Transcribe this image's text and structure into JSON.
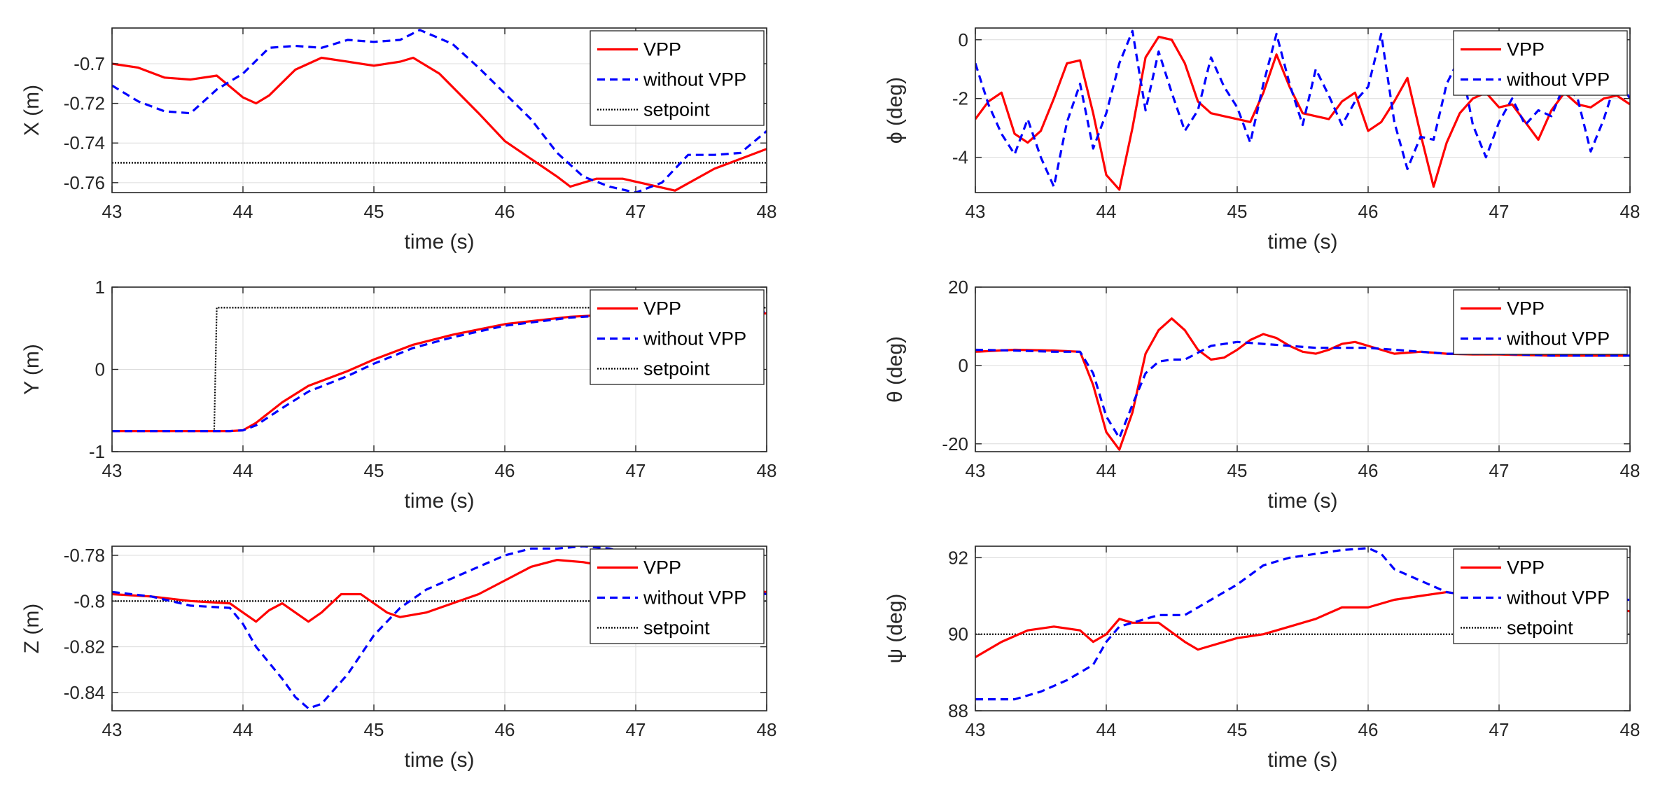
{
  "colors": {
    "vpp": "#ff0000",
    "without": "#0000ff",
    "setpoint": "#000000",
    "axis": "#262626",
    "grid": "#dcdcdc"
  },
  "legend_labels": {
    "vpp": "VPP",
    "without": "without VPP",
    "setpoint": "setpoint"
  },
  "chart_data": [
    {
      "id": "X",
      "type": "line",
      "ylabel": "X (m)",
      "xlabel": "time (s)",
      "xlim": [
        43,
        48
      ],
      "ylim": [
        -0.765,
        -0.682
      ],
      "xticks": [
        43,
        44,
        45,
        46,
        47,
        48
      ],
      "xtick_labels": [
        "43",
        "44",
        "45",
        "46",
        "47",
        "48"
      ],
      "yticks": [
        -0.76,
        -0.74,
        -0.72,
        -0.7
      ],
      "ytick_labels": [
        "-0.76",
        "-0.74",
        "-0.72",
        "-0.7"
      ],
      "grid": true,
      "legend": [
        "VPP",
        "without VPP",
        "setpoint"
      ],
      "legend_position": "top-right",
      "series": [
        {
          "name": "VPP",
          "x": [
            43,
            43.2,
            43.4,
            43.6,
            43.8,
            44,
            44.1,
            44.2,
            44.4,
            44.6,
            44.8,
            45,
            45.2,
            45.3,
            45.5,
            45.8,
            46,
            46.2,
            46.4,
            46.5,
            46.7,
            46.9,
            47.1,
            47.3,
            47.6,
            48
          ],
          "y": [
            -0.7,
            -0.702,
            -0.707,
            -0.708,
            -0.706,
            -0.717,
            -0.72,
            -0.716,
            -0.703,
            -0.697,
            -0.699,
            -0.701,
            -0.699,
            -0.697,
            -0.705,
            -0.725,
            -0.739,
            -0.748,
            -0.757,
            -0.762,
            -0.758,
            -0.758,
            -0.761,
            -0.764,
            -0.753,
            -0.743
          ]
        },
        {
          "name": "without VPP",
          "x": [
            43,
            43.2,
            43.4,
            43.6,
            43.8,
            44,
            44.2,
            44.4,
            44.6,
            44.8,
            45,
            45.2,
            45.35,
            45.6,
            45.8,
            46,
            46.2,
            46.4,
            46.6,
            46.8,
            47,
            47.2,
            47.4,
            47.6,
            47.8,
            48
          ],
          "y": [
            -0.711,
            -0.719,
            -0.724,
            -0.725,
            -0.713,
            -0.705,
            -0.692,
            -0.691,
            -0.692,
            -0.688,
            -0.689,
            -0.688,
            -0.683,
            -0.69,
            -0.702,
            -0.715,
            -0.728,
            -0.745,
            -0.757,
            -0.762,
            -0.765,
            -0.76,
            -0.746,
            -0.746,
            -0.745,
            -0.734
          ]
        },
        {
          "name": "setpoint",
          "x": [
            43,
            48
          ],
          "y": [
            -0.75,
            -0.75
          ]
        }
      ]
    },
    {
      "id": "Y",
      "type": "line",
      "ylabel": "Y (m)",
      "xlabel": "time (s)",
      "xlim": [
        43,
        48
      ],
      "ylim": [
        -1,
        1
      ],
      "xticks": [
        43,
        44,
        45,
        46,
        47,
        48
      ],
      "xtick_labels": [
        "43",
        "44",
        "45",
        "46",
        "47",
        "48"
      ],
      "yticks": [
        -1,
        0,
        1
      ],
      "ytick_labels": [
        "-1",
        "0",
        "1"
      ],
      "grid": true,
      "legend": [
        "VPP",
        "without VPP",
        "setpoint"
      ],
      "legend_position": "top-right",
      "series": [
        {
          "name": "VPP",
          "x": [
            43,
            43.5,
            43.9,
            44,
            44.1,
            44.3,
            44.5,
            44.8,
            45,
            45.3,
            45.6,
            46,
            46.5,
            47,
            47.5,
            48
          ],
          "y": [
            -0.75,
            -0.75,
            -0.75,
            -0.74,
            -0.65,
            -0.4,
            -0.2,
            -0.02,
            0.12,
            0.3,
            0.42,
            0.55,
            0.64,
            0.68,
            0.69,
            0.68
          ]
        },
        {
          "name": "without VPP",
          "x": [
            43,
            43.5,
            43.9,
            44,
            44.1,
            44.3,
            44.5,
            44.8,
            45,
            45.3,
            45.6,
            46,
            46.5,
            47,
            47.5,
            48
          ],
          "y": [
            -0.75,
            -0.75,
            -0.75,
            -0.74,
            -0.68,
            -0.47,
            -0.27,
            -0.08,
            0.07,
            0.26,
            0.39,
            0.53,
            0.63,
            0.68,
            0.69,
            0.7
          ]
        },
        {
          "name": "setpoint",
          "x": [
            43,
            43.78,
            43.8,
            48
          ],
          "y": [
            -0.75,
            -0.75,
            0.75,
            0.75
          ]
        }
      ]
    },
    {
      "id": "Z",
      "type": "line",
      "ylabel": "Z (m)",
      "xlabel": "time (s)",
      "xlim": [
        43,
        48
      ],
      "ylim": [
        -0.848,
        -0.776
      ],
      "xticks": [
        43,
        44,
        45,
        46,
        47,
        48
      ],
      "xtick_labels": [
        "43",
        "44",
        "45",
        "46",
        "47",
        "48"
      ],
      "yticks": [
        -0.84,
        -0.82,
        -0.8,
        -0.78
      ],
      "ytick_labels": [
        "-0.84",
        "-0.82",
        "-0.8",
        "-0.78"
      ],
      "grid": true,
      "legend": [
        "VPP",
        "without VPP",
        "setpoint"
      ],
      "legend_position": "top-right",
      "series": [
        {
          "name": "VPP",
          "x": [
            43,
            43.3,
            43.6,
            43.9,
            44,
            44.1,
            44.2,
            44.3,
            44.4,
            44.5,
            44.6,
            44.75,
            44.9,
            45.1,
            45.2,
            45.4,
            45.6,
            45.8,
            46,
            46.2,
            46.4,
            46.6,
            46.8,
            47,
            47.2,
            47.5,
            48
          ],
          "y": [
            -0.797,
            -0.798,
            -0.8,
            -0.801,
            -0.805,
            -0.809,
            -0.804,
            -0.801,
            -0.805,
            -0.809,
            -0.805,
            -0.797,
            -0.797,
            -0.805,
            -0.807,
            -0.805,
            -0.801,
            -0.797,
            -0.791,
            -0.785,
            -0.782,
            -0.783,
            -0.785,
            -0.786,
            -0.789,
            -0.795,
            -0.796
          ]
        },
        {
          "name": "without VPP",
          "x": [
            43,
            43.3,
            43.6,
            43.9,
            44,
            44.1,
            44.2,
            44.3,
            44.4,
            44.5,
            44.6,
            44.8,
            45,
            45.2,
            45.4,
            45.6,
            45.8,
            46,
            46.2,
            46.4,
            46.6,
            46.8,
            47,
            47.2,
            47.5,
            48
          ],
          "y": [
            -0.796,
            -0.798,
            -0.802,
            -0.803,
            -0.81,
            -0.82,
            -0.827,
            -0.834,
            -0.842,
            -0.847,
            -0.845,
            -0.832,
            -0.815,
            -0.803,
            -0.795,
            -0.79,
            -0.785,
            -0.78,
            -0.777,
            -0.777,
            -0.776,
            -0.777,
            -0.78,
            -0.786,
            -0.793,
            -0.797
          ]
        },
        {
          "name": "setpoint",
          "x": [
            43,
            48
          ],
          "y": [
            -0.8,
            -0.8
          ]
        }
      ]
    },
    {
      "id": "phi",
      "type": "line",
      "ylabel": "ϕ (deg)",
      "xlabel": "time (s)",
      "xlim": [
        43,
        48
      ],
      "ylim": [
        -5.2,
        0.4
      ],
      "xticks": [
        43,
        44,
        45,
        46,
        47,
        48
      ],
      "xtick_labels": [
        "43",
        "44",
        "45",
        "46",
        "47",
        "48"
      ],
      "yticks": [
        -4,
        -2,
        0
      ],
      "ytick_labels": [
        "-4",
        "-2",
        "0"
      ],
      "grid": true,
      "legend": [
        "VPP",
        "without VPP"
      ],
      "legend_position": "top-right",
      "series": [
        {
          "name": "VPP",
          "x": [
            43,
            43.1,
            43.2,
            43.3,
            43.4,
            43.5,
            43.6,
            43.7,
            43.8,
            43.9,
            44,
            44.1,
            44.2,
            44.3,
            44.4,
            44.5,
            44.6,
            44.7,
            44.8,
            44.9,
            45,
            45.1,
            45.2,
            45.3,
            45.4,
            45.5,
            45.6,
            45.7,
            45.8,
            45.9,
            46,
            46.1,
            46.2,
            46.3,
            46.4,
            46.5,
            46.6,
            46.7,
            46.8,
            46.9,
            47,
            47.1,
            47.2,
            47.3,
            47.4,
            47.5,
            47.6,
            47.7,
            47.8,
            47.9,
            48
          ],
          "y": [
            -2.7,
            -2.1,
            -1.8,
            -3.2,
            -3.5,
            -3.1,
            -2,
            -0.8,
            -0.7,
            -2.5,
            -4.6,
            -5.1,
            -3,
            -0.6,
            0.1,
            0,
            -0.8,
            -2.1,
            -2.5,
            -2.6,
            -2.7,
            -2.8,
            -1.8,
            -0.5,
            -1.6,
            -2.5,
            -2.6,
            -2.7,
            -2.1,
            -1.8,
            -3.1,
            -2.8,
            -2.1,
            -1.3,
            -3.2,
            -5,
            -3.5,
            -2.5,
            -2,
            -1.8,
            -2.3,
            -2.2,
            -2.8,
            -3.4,
            -2.4,
            -1.8,
            -2.2,
            -2.3,
            -2,
            -1.9,
            -2.2
          ]
        },
        {
          "name": "without VPP",
          "x": [
            43,
            43.1,
            43.2,
            43.3,
            43.4,
            43.5,
            43.6,
            43.7,
            43.8,
            43.9,
            44,
            44.1,
            44.2,
            44.3,
            44.4,
            44.5,
            44.6,
            44.7,
            44.8,
            44.9,
            45,
            45.1,
            45.2,
            45.3,
            45.4,
            45.5,
            45.6,
            45.7,
            45.8,
            45.9,
            46,
            46.1,
            46.2,
            46.3,
            46.4,
            46.5,
            46.6,
            46.7,
            46.8,
            46.9,
            47,
            47.1,
            47.2,
            47.3,
            47.4,
            47.5,
            47.6,
            47.7,
            47.8,
            47.9,
            48
          ],
          "y": [
            -0.8,
            -2.2,
            -3.2,
            -3.9,
            -2.7,
            -4,
            -5,
            -2.8,
            -1.5,
            -3.7,
            -2.5,
            -0.8,
            0.3,
            -2.4,
            -0.4,
            -1.8,
            -3.1,
            -2.4,
            -0.6,
            -1.6,
            -2.3,
            -3.5,
            -1.5,
            0.2,
            -1.5,
            -2.9,
            -1,
            -1.9,
            -2.9,
            -2.1,
            -1.6,
            0.2,
            -2.8,
            -4.4,
            -3.3,
            -3.4,
            -1.5,
            -0.6,
            -2.9,
            -4,
            -2.8,
            -2,
            -2.9,
            -2.4,
            -2.6,
            -1.5,
            -2,
            -3.8,
            -2.7,
            -1.3,
            -2
          ]
        }
      ]
    },
    {
      "id": "theta",
      "type": "line",
      "ylabel": "θ (deg)",
      "xlabel": "time (s)",
      "xlim": [
        43,
        48
      ],
      "ylim": [
        -22,
        20
      ],
      "xticks": [
        43,
        44,
        45,
        46,
        47,
        48
      ],
      "xtick_labels": [
        "43",
        "44",
        "45",
        "46",
        "47",
        "48"
      ],
      "yticks": [
        -20,
        0,
        20
      ],
      "ytick_labels": [
        "-20",
        "0",
        "20"
      ],
      "grid": true,
      "legend": [
        "VPP",
        "without VPP"
      ],
      "legend_position": "top-right",
      "series": [
        {
          "name": "VPP",
          "x": [
            43,
            43.3,
            43.6,
            43.8,
            43.9,
            44,
            44.1,
            44.2,
            44.3,
            44.4,
            44.5,
            44.6,
            44.7,
            44.8,
            44.9,
            45,
            45.1,
            45.2,
            45.3,
            45.4,
            45.5,
            45.6,
            45.7,
            45.8,
            45.9,
            46,
            46.2,
            46.4,
            46.6,
            46.8,
            47,
            47.4,
            48
          ],
          "y": [
            3.5,
            4,
            3.8,
            3.5,
            -5,
            -17,
            -21.5,
            -12,
            3,
            9,
            12,
            9,
            4,
            1.5,
            2,
            4,
            6.5,
            8,
            7,
            5,
            3.5,
            3,
            4,
            5.5,
            6,
            5,
            3,
            3.5,
            3,
            2.8,
            2.8,
            2.5,
            2.5
          ]
        },
        {
          "name": "without VPP",
          "x": [
            43,
            43.3,
            43.6,
            43.8,
            43.9,
            44,
            44.1,
            44.2,
            44.3,
            44.4,
            44.5,
            44.6,
            44.8,
            45,
            45.2,
            45.4,
            45.6,
            45.8,
            46,
            46.2,
            46.4,
            46.6,
            46.8,
            47,
            47.4,
            48
          ],
          "y": [
            4,
            3.8,
            3.5,
            3.5,
            -2,
            -13,
            -18.5,
            -10,
            -2,
            1,
            1.5,
            1.5,
            5,
            6,
            5.5,
            5,
            4.5,
            4.5,
            4.5,
            4,
            3.5,
            3,
            3,
            3,
            2.5,
            2.5
          ]
        }
      ]
    },
    {
      "id": "psi",
      "type": "line",
      "ylabel": "ψ (deg)",
      "xlabel": "time (s)",
      "xlim": [
        43,
        48
      ],
      "ylim": [
        88,
        92.3
      ],
      "xticks": [
        43,
        44,
        45,
        46,
        47,
        48
      ],
      "xtick_labels": [
        "43",
        "44",
        "45",
        "46",
        "47",
        "48"
      ],
      "yticks": [
        88,
        90,
        92
      ],
      "ytick_labels": [
        "88",
        "90",
        "92"
      ],
      "grid": true,
      "legend": [
        "VPP",
        "without VPP",
        "setpoint"
      ],
      "legend_position": "top-right",
      "series": [
        {
          "name": "VPP",
          "x": [
            43,
            43.2,
            43.4,
            43.6,
            43.8,
            43.9,
            44,
            44.1,
            44.2,
            44.4,
            44.6,
            44.7,
            44.8,
            45,
            45.2,
            45.4,
            45.6,
            45.8,
            46,
            46.2,
            46.4,
            46.6,
            46.8,
            47,
            47.2,
            47.4,
            47.6,
            47.8,
            48
          ],
          "y": [
            89.4,
            89.8,
            90.1,
            90.2,
            90.1,
            89.8,
            90,
            90.4,
            90.3,
            90.3,
            89.8,
            89.6,
            89.7,
            89.9,
            90,
            90.2,
            90.4,
            90.7,
            90.7,
            90.9,
            91,
            91.1,
            91,
            90.9,
            90.8,
            90.9,
            90.8,
            90.7,
            90.6
          ]
        },
        {
          "name": "without VPP",
          "x": [
            43,
            43.2,
            43.3,
            43.5,
            43.7,
            43.8,
            43.9,
            44,
            44.1,
            44.2,
            44.4,
            44.6,
            44.8,
            45,
            45.2,
            45.4,
            45.6,
            45.8,
            46,
            46.1,
            46.2,
            46.4,
            46.6,
            46.8,
            47,
            47.2,
            47.4,
            47.6,
            47.8,
            48
          ],
          "y": [
            88.3,
            88.3,
            88.3,
            88.5,
            88.8,
            89,
            89.2,
            89.8,
            90.2,
            90.3,
            90.5,
            90.5,
            90.9,
            91.3,
            91.8,
            92,
            92.1,
            92.2,
            92.25,
            92.1,
            91.7,
            91.4,
            91.1,
            91,
            91,
            91,
            90.9,
            90.9,
            90.9,
            90.9
          ]
        },
        {
          "name": "setpoint",
          "x": [
            43,
            48
          ],
          "y": [
            90,
            90
          ]
        }
      ]
    }
  ]
}
